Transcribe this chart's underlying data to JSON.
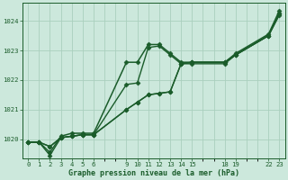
{
  "bg_color": "#cce8dc",
  "grid_color": "#aacfbe",
  "line_color": "#1a5c2a",
  "xlabel": "Graphe pression niveau de la mer (hPa)",
  "xtick_hours": [
    0,
    1,
    2,
    3,
    4,
    5,
    6,
    9,
    10,
    11,
    12,
    13,
    14,
    15,
    18,
    19,
    22,
    23
  ],
  "xtick_labels": [
    "0",
    "1",
    "2",
    "3",
    "4",
    "5",
    "6",
    "9",
    "10",
    "11",
    "12",
    "13",
    "14",
    "15",
    "18",
    "19",
    "22",
    "23"
  ],
  "ytick_vals": [
    1020,
    1021,
    1022,
    1023,
    1024
  ],
  "ylim": [
    1019.35,
    1024.6
  ],
  "xlim": [
    -0.5,
    23.5
  ],
  "series": [
    {
      "x": [
        0,
        1,
        2,
        3,
        4,
        5,
        6,
        9,
        10,
        11,
        12,
        13,
        14,
        15,
        18,
        19,
        22,
        23
      ],
      "y": [
        1019.9,
        1019.9,
        1019.55,
        1020.1,
        1020.2,
        1020.2,
        1020.2,
        1022.6,
        1022.6,
        1023.2,
        1023.2,
        1022.9,
        1022.6,
        1022.6,
        1022.6,
        1022.9,
        1023.55,
        1024.35
      ],
      "marker": "D",
      "ms": 2.5,
      "lw": 1.1
    },
    {
      "x": [
        0,
        1,
        2,
        3,
        4,
        5,
        6,
        9,
        10,
        11,
        12,
        13,
        14,
        15,
        18,
        19,
        22,
        23
      ],
      "y": [
        1019.9,
        1019.9,
        1019.75,
        1020.05,
        1020.1,
        1020.15,
        1020.15,
        1021.85,
        1021.9,
        1023.1,
        1023.15,
        1022.85,
        1022.55,
        1022.55,
        1022.55,
        1022.85,
        1023.5,
        1024.2
      ],
      "marker": "D",
      "ms": 2.5,
      "lw": 1.0
    },
    {
      "x": [
        0,
        1,
        2,
        3,
        4,
        5,
        6,
        9,
        10,
        11,
        12,
        13,
        14,
        15,
        18,
        19,
        22,
        23
      ],
      "y": [
        1019.9,
        1019.9,
        1019.75,
        1020.05,
        1020.1,
        1020.15,
        1020.15,
        1021.0,
        1021.25,
        1021.5,
        1021.55,
        1021.6,
        1022.55,
        1022.6,
        1022.6,
        1022.85,
        1023.5,
        1024.25
      ],
      "marker": "D",
      "ms": 2.5,
      "lw": 1.0
    },
    {
      "x": [
        0,
        1,
        2,
        3,
        4,
        5,
        6,
        9,
        10,
        11,
        12,
        13,
        14,
        15,
        18,
        19,
        22,
        23
      ],
      "y": [
        1019.9,
        1019.9,
        1019.45,
        1020.05,
        1020.1,
        1020.15,
        1020.15,
        1021.0,
        1021.25,
        1021.5,
        1021.55,
        1021.6,
        1022.55,
        1022.6,
        1022.6,
        1022.85,
        1023.5,
        1024.25
      ],
      "marker": "D",
      "ms": 2.5,
      "lw": 1.0
    }
  ]
}
